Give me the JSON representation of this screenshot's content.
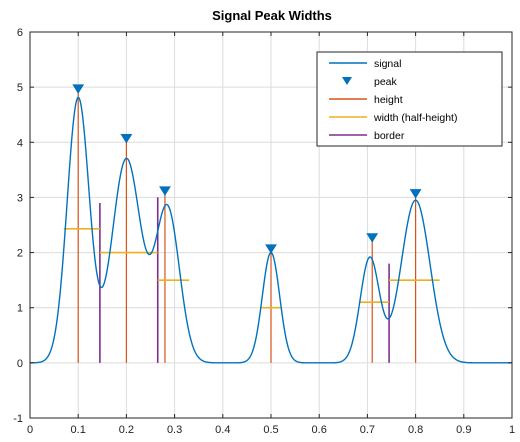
{
  "chart_data": {
    "type": "line",
    "title": "Signal Peak Widths",
    "xlabel": "",
    "ylabel": "",
    "xlim": [
      0,
      1
    ],
    "ylim": [
      -1,
      6
    ],
    "x_ticks": [
      "0",
      "0.1",
      "0.2",
      "0.3",
      "0.4",
      "0.5",
      "0.6",
      "0.7",
      "0.8",
      "0.9",
      "1"
    ],
    "y_ticks": [
      "-1",
      "0",
      "1",
      "2",
      "3",
      "4",
      "5",
      "6"
    ],
    "grid": true,
    "legend_position": "top-right",
    "legend": [
      "signal",
      "peak",
      "height",
      "width (half-height)",
      "border"
    ],
    "series": [
      {
        "name": "signal",
        "style": "line",
        "color": "#0072BD",
        "components": [
          {
            "amplitude": 4.8,
            "center": 0.1,
            "sigma": 0.023
          },
          {
            "amplitude": 3.7,
            "center": 0.2,
            "sigma": 0.03
          },
          {
            "amplitude": 2.8,
            "center": 0.285,
            "sigma": 0.025
          },
          {
            "amplitude": 2.0,
            "center": 0.5,
            "sigma": 0.018
          },
          {
            "amplitude": 1.9,
            "center": 0.705,
            "sigma": 0.02
          },
          {
            "amplitude": 2.95,
            "center": 0.8,
            "sigma": 0.03
          }
        ]
      },
      {
        "name": "peak",
        "style": "marker-triangle-down",
        "color": "#0072BD",
        "x": [
          0.1,
          0.2,
          0.28,
          0.5,
          0.71,
          0.8
        ],
        "y": [
          4.95,
          4.05,
          3.1,
          2.05,
          2.25,
          3.05
        ]
      },
      {
        "name": "height",
        "style": "vertical-lines",
        "color": "#D95319",
        "x": [
          0.1,
          0.2,
          0.28,
          0.5,
          0.71,
          0.8
        ],
        "y_top": [
          4.95,
          4.05,
          3.1,
          2.05,
          2.25,
          3.05
        ]
      },
      {
        "name": "width (half-height)",
        "style": "horizontal-lines",
        "color": "#EDB120",
        "segments": [
          {
            "x1": 0.07,
            "x2": 0.145,
            "y": 2.43
          },
          {
            "x1": 0.145,
            "x2": 0.265,
            "y": 2.0
          },
          {
            "x1": 0.265,
            "x2": 0.33,
            "y": 1.5
          },
          {
            "x1": 0.478,
            "x2": 0.522,
            "y": 1.0
          },
          {
            "x1": 0.685,
            "x2": 0.745,
            "y": 1.1
          },
          {
            "x1": 0.745,
            "x2": 0.85,
            "y": 1.5
          }
        ]
      },
      {
        "name": "border",
        "style": "vertical-lines",
        "color": "#7E2F8E",
        "x": [
          0.145,
          0.265,
          0.745
        ],
        "y_top": [
          2.9,
          3.0,
          1.8
        ]
      }
    ]
  }
}
